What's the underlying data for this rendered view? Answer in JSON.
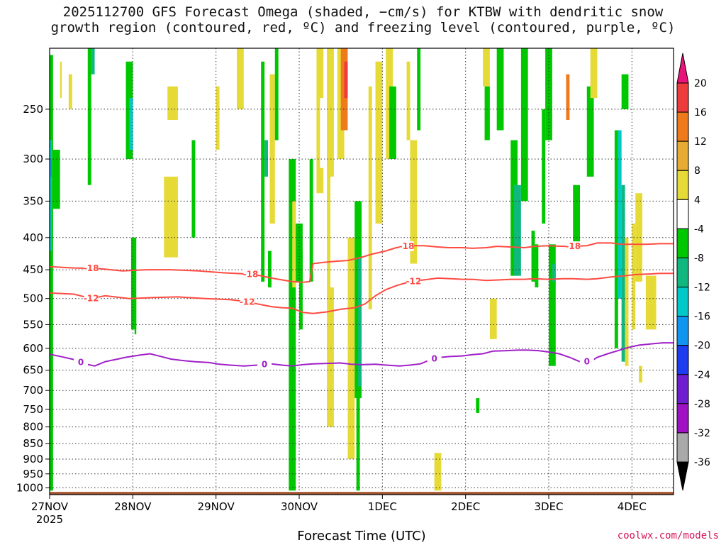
{
  "title_line1": "2025112700 GFS Forecast Omega (shaded, −cm/s) for KTBW with dendritic snow",
  "title_line2": "growth region (contoured, red, ºC) and freezing level (contoured, purple, ºC)",
  "credit": "coolwx.com/models",
  "colors": {
    "dgz_contour": "#ff4b41",
    "freezing_contour": "#a020c8",
    "ground": "#a0522d",
    "grid": "#333333"
  },
  "chart_data": {
    "type": "heatmap",
    "title": "2025112700 GFS Forecast Omega (shaded, −cm/s) for KTBW with dendritic snow growth region (contoured, red, ºC) and freezing level (contoured, purple, ºC)",
    "xlabel": "Forecast Time (UTC)",
    "ylabel": "",
    "x_tick_labels": [
      "27NOV",
      "28NOV",
      "29NOV",
      "30NOV",
      "1DEC",
      "2DEC",
      "3DEC",
      "4DEC"
    ],
    "x_year_label": "2025",
    "x_range_hours": [
      0,
      180
    ],
    "y_ticks": [
      250,
      300,
      350,
      400,
      450,
      500,
      550,
      600,
      650,
      700,
      750,
      800,
      850,
      900,
      950,
      1000
    ],
    "y_range_hpa": [
      200,
      1025
    ],
    "y_scale": "log",
    "grid": "dotted",
    "colorbar": {
      "ticks": [
        20,
        16,
        12,
        8,
        4,
        -4,
        -8,
        -12,
        -16,
        -20,
        -24,
        -28,
        -32,
        -36
      ],
      "colors": [
        "#e8147a",
        "#ee3c3c",
        "#ef7a1c",
        "#e6ab32",
        "#e6da37",
        "#ffffff",
        "#00c800",
        "#10b87f",
        "#00c9c8",
        "#1096ee",
        "#1e3cf0",
        "#6e1ecf",
        "#9e12c4",
        "#a9a9a9",
        "#000000"
      ]
    },
    "contours": [
      {
        "name": "-18",
        "color": "#ff4b41",
        "points": [
          [
            0,
            445
          ],
          [
            7,
            447
          ],
          [
            14,
            448
          ],
          [
            21,
            452
          ],
          [
            28,
            450
          ],
          [
            35,
            450
          ],
          [
            43,
            452
          ],
          [
            50,
            455
          ],
          [
            57,
            457
          ],
          [
            61,
            460
          ],
          [
            64,
            464
          ],
          [
            67,
            467
          ],
          [
            70,
            470
          ],
          [
            73,
            471
          ],
          [
            75,
            470
          ],
          [
            76,
            440
          ],
          [
            79,
            438
          ],
          [
            83,
            436
          ],
          [
            86,
            435
          ],
          [
            90,
            430
          ],
          [
            93,
            425
          ],
          [
            97,
            420
          ],
          [
            100,
            415
          ],
          [
            104,
            412
          ],
          [
            108,
            412
          ],
          [
            112,
            414
          ],
          [
            115,
            415
          ],
          [
            119,
            415
          ],
          [
            122,
            416
          ],
          [
            126,
            415
          ],
          [
            129,
            413
          ],
          [
            133,
            414
          ],
          [
            137,
            415
          ],
          [
            140,
            413
          ],
          [
            144,
            412
          ],
          [
            148,
            413
          ],
          [
            151,
            413
          ],
          [
            155,
            412
          ],
          [
            158,
            408
          ],
          [
            162,
            408
          ],
          [
            165,
            410
          ],
          [
            169,
            410
          ],
          [
            172,
            410
          ],
          [
            176,
            409
          ],
          [
            180,
            409
          ]
        ]
      },
      {
        "name": "-12",
        "color": "#ff4b41",
        "points": [
          [
            0,
            490
          ],
          [
            7,
            492
          ],
          [
            12,
            500
          ],
          [
            16,
            495
          ],
          [
            23,
            500
          ],
          [
            30,
            498
          ],
          [
            37,
            497
          ],
          [
            45,
            500
          ],
          [
            52,
            502
          ],
          [
            56,
            505
          ],
          [
            60,
            510
          ],
          [
            64,
            515
          ],
          [
            67,
            517
          ],
          [
            70,
            518
          ],
          [
            73,
            526
          ],
          [
            76,
            528
          ],
          [
            80,
            525
          ],
          [
            84,
            520
          ],
          [
            88,
            517
          ],
          [
            91,
            510
          ],
          [
            94,
            495
          ],
          [
            97,
            484
          ],
          [
            100,
            477
          ],
          [
            104,
            470
          ],
          [
            108,
            467
          ],
          [
            112,
            464
          ],
          [
            116,
            465
          ],
          [
            119,
            466
          ],
          [
            122,
            466
          ],
          [
            126,
            468
          ],
          [
            130,
            467
          ],
          [
            133,
            466
          ],
          [
            137,
            466
          ],
          [
            140,
            465
          ],
          [
            144,
            466
          ],
          [
            148,
            465
          ],
          [
            151,
            465
          ],
          [
            155,
            466
          ],
          [
            158,
            465
          ],
          [
            162,
            462
          ],
          [
            166,
            460
          ],
          [
            169,
            458
          ],
          [
            173,
            457
          ],
          [
            176,
            456
          ],
          [
            180,
            456
          ]
        ]
      },
      {
        "name": "0",
        "color": "#a020c8",
        "points": [
          [
            0,
            613
          ],
          [
            3,
            618
          ],
          [
            7,
            625
          ],
          [
            10,
            635
          ],
          [
            13,
            640
          ],
          [
            16,
            630
          ],
          [
            19,
            625
          ],
          [
            22,
            620
          ],
          [
            26,
            615
          ],
          [
            29,
            612
          ],
          [
            32,
            618
          ],
          [
            35,
            624
          ],
          [
            39,
            628
          ],
          [
            42,
            630
          ],
          [
            46,
            632
          ],
          [
            49,
            636
          ],
          [
            52,
            638
          ],
          [
            56,
            640
          ],
          [
            60,
            638
          ],
          [
            64,
            635
          ],
          [
            67,
            638
          ],
          [
            70,
            640
          ],
          [
            73,
            637
          ],
          [
            76,
            635
          ],
          [
            80,
            634
          ],
          [
            84,
            633
          ],
          [
            87,
            636
          ],
          [
            90,
            637
          ],
          [
            94,
            636
          ],
          [
            97,
            638
          ],
          [
            101,
            640
          ],
          [
            104,
            638
          ],
          [
            107,
            635
          ],
          [
            110,
            625
          ],
          [
            113,
            620
          ],
          [
            116,
            618
          ],
          [
            119,
            617
          ],
          [
            122,
            614
          ],
          [
            125,
            612
          ],
          [
            128,
            606
          ],
          [
            132,
            605
          ],
          [
            135,
            604
          ],
          [
            138,
            604
          ],
          [
            141,
            605
          ],
          [
            144,
            608
          ],
          [
            147,
            612
          ],
          [
            150,
            620
          ],
          [
            153,
            630
          ],
          [
            156,
            630
          ],
          [
            158,
            620
          ],
          [
            161,
            612
          ],
          [
            164,
            605
          ],
          [
            167,
            598
          ],
          [
            170,
            593
          ],
          [
            174,
            590
          ],
          [
            177,
            588
          ],
          [
            180,
            588
          ]
        ]
      }
    ],
    "surface_pressure_hpa": 1015
  }
}
